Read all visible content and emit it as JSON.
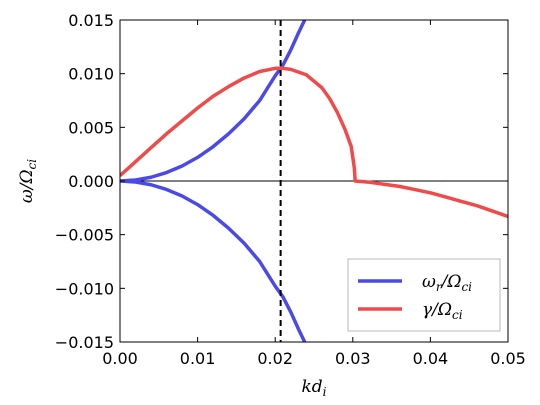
{
  "chart_data": {
    "type": "line",
    "title": "",
    "xlabel": "kd_i",
    "ylabel": "ω/Ω_ci",
    "xlim": [
      0.0,
      0.05
    ],
    "ylim": [
      -0.015,
      0.015
    ],
    "x_ticks": [
      "0.00",
      "0.01",
      "0.02",
      "0.03",
      "0.04",
      "0.05"
    ],
    "y_ticks": [
      "−0.015",
      "−0.010",
      "−0.005",
      "0.000",
      "0.005",
      "0.010",
      "0.015"
    ],
    "x_tick_values": [
      0.0,
      0.01,
      0.02,
      0.03,
      0.04,
      0.05
    ],
    "y_tick_values": [
      -0.015,
      -0.01,
      -0.005,
      0.0,
      0.005,
      0.01,
      0.015
    ],
    "grid": false,
    "legend_position": "bottom-right",
    "vertical_line": {
      "x": 0.0207,
      "style": "dashed",
      "color": "#000000"
    },
    "zero_line": {
      "y": 0.0,
      "color": "#000000"
    },
    "series": [
      {
        "name": "ω_r/Ω_ci",
        "legend_main": "ω",
        "legend_sub1": "r",
        "legend_mid": "/Ω",
        "legend_sub2": "ci",
        "color": "#4a4ae8",
        "branches": [
          {
            "x": [
              0.0,
              0.002,
              0.004,
              0.006,
              0.008,
              0.01,
              0.012,
              0.014,
              0.016,
              0.018,
              0.02,
              0.021,
              0.022,
              0.023,
              0.0238
            ],
            "y": [
              0.0,
              9e-05,
              0.00035,
              0.00079,
              0.0014,
              0.0022,
              0.0032,
              0.0044,
              0.0058,
              0.0075,
              0.0098,
              0.0108,
              0.0122,
              0.0138,
              0.015
            ]
          },
          {
            "x": [
              0.0,
              0.002,
              0.004,
              0.006,
              0.008,
              0.01,
              0.012,
              0.014,
              0.016,
              0.018,
              0.02,
              0.021,
              0.022,
              0.023,
              0.0238
            ],
            "y": [
              0.0,
              -9e-05,
              -0.00035,
              -0.00079,
              -0.0014,
              -0.0022,
              -0.0032,
              -0.0044,
              -0.0058,
              -0.0075,
              -0.0098,
              -0.0108,
              -0.0122,
              -0.0138,
              -0.015
            ]
          }
        ]
      },
      {
        "name": "γ/Ω_ci",
        "legend_main": "γ",
        "legend_sub1": "",
        "legend_mid": "/Ω",
        "legend_sub2": "ci",
        "color": "#f04a4a",
        "branches": [
          {
            "x": [
              0.0,
              0.002,
              0.004,
              0.006,
              0.008,
              0.01,
              0.012,
              0.014,
              0.016,
              0.018,
              0.02,
              0.021,
              0.022,
              0.024,
              0.026,
              0.027,
              0.028,
              0.029,
              0.0298,
              0.0302,
              0.0303,
              0.032,
              0.034,
              0.036,
              0.038,
              0.04,
              0.042,
              0.044,
              0.046,
              0.048,
              0.05
            ],
            "y": [
              0.0005,
              0.0018,
              0.0031,
              0.0044,
              0.0056,
              0.0068,
              0.0079,
              0.0088,
              0.0096,
              0.0102,
              0.0105,
              0.0105,
              0.0104,
              0.0099,
              0.0087,
              0.0077,
              0.0064,
              0.0048,
              0.0032,
              0.0012,
              0.0,
              -0.0001,
              -0.0003,
              -0.0005,
              -0.0008,
              -0.0011,
              -0.0015,
              -0.0019,
              -0.0023,
              -0.0028,
              -0.0033
            ]
          }
        ]
      }
    ]
  }
}
